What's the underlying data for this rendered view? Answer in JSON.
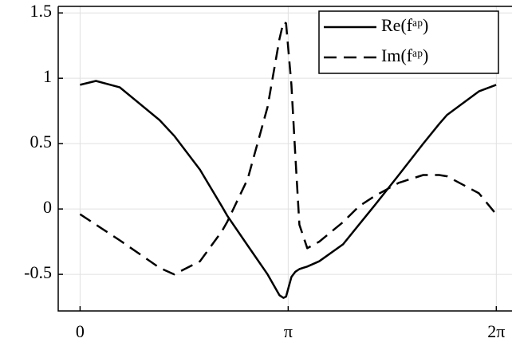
{
  "chart_data": {
    "type": "line",
    "x": [
      0,
      0.24,
      0.6,
      1.2,
      1.42,
      1.81,
      2.14,
      2.22,
      2.53,
      2.83,
      3.01,
      3.07,
      3.11,
      3.19,
      3.25,
      3.31,
      3.43,
      3.61,
      3.97,
      4.21,
      4.45,
      4.81,
      5.18,
      5.42,
      5.54,
      6.02,
      6.28
    ],
    "series": [
      {
        "name": "Re(fᵃᵖ)",
        "color": "#000000",
        "dash": "solid",
        "values": [
          0.95,
          0.98,
          0.93,
          0.68,
          0.56,
          0.3,
          0.02,
          -0.05,
          -0.28,
          -0.5,
          -0.66,
          -0.68,
          -0.67,
          -0.52,
          -0.48,
          -0.46,
          -0.44,
          -0.4,
          -0.27,
          -0.12,
          0.03,
          0.26,
          0.5,
          0.65,
          0.72,
          0.9,
          0.95
        ]
      },
      {
        "name": "Im(fᵃᵖ)",
        "color": "#000000",
        "dash": "dashed",
        "values": [
          -0.04,
          -0.12,
          -0.24,
          -0.45,
          -0.5,
          -0.4,
          -0.17,
          -0.1,
          0.23,
          0.78,
          1.3,
          1.43,
          1.42,
          0.95,
          0.4,
          -0.12,
          -0.3,
          -0.25,
          -0.1,
          0.02,
          0.1,
          0.2,
          0.26,
          0.26,
          0.25,
          0.12,
          -0.04
        ]
      }
    ],
    "xlim": [
      -0.33,
      6.52
    ],
    "ylim": [
      -0.78,
      1.55
    ],
    "xticks": [
      {
        "value": 0,
        "label": "0"
      },
      {
        "value": 3.14159,
        "label": "π"
      },
      {
        "value": 6.28319,
        "label": "2π"
      }
    ],
    "yticks": [
      -0.5,
      0,
      0.5,
      1,
      1.5
    ],
    "grid": true,
    "legend": "upper-right"
  }
}
